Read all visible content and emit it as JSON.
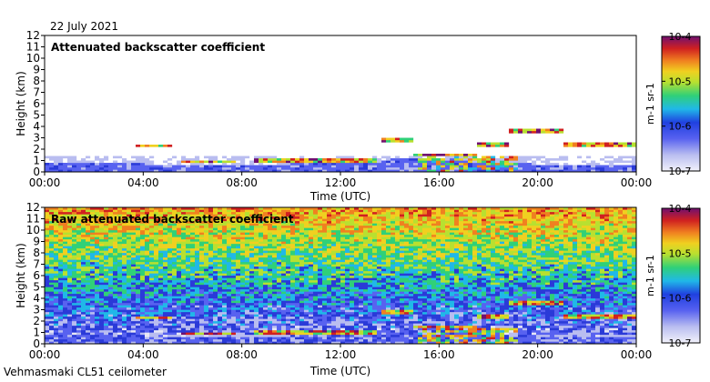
{
  "date": "22 July 2021",
  "footer": "Vehmasmaki CL51 ceilometer",
  "colors": {
    "scale": [
      "#e8e8f6",
      "#b9bdf0",
      "#5862f0",
      "#2a3ad8",
      "#20b8e8",
      "#30d078",
      "#b8e030",
      "#f0d020",
      "#f08020",
      "#d02020",
      "#701070"
    ]
  },
  "chart_data": [
    {
      "type": "heatmap",
      "title": "Attenuated backscatter coefficient",
      "xlabel": "Time (UTC)",
      "ylabel": "Height (km)",
      "x_ticks": [
        "00:00",
        "04:00",
        "08:00",
        "12:00",
        "16:00",
        "20:00",
        "00:00"
      ],
      "y_ticks": [
        "0",
        "1",
        "2",
        "3",
        "4",
        "5",
        "6",
        "7",
        "8",
        "9",
        "10",
        "11",
        "12"
      ],
      "ylim": [
        0,
        12
      ],
      "xlim_hours": [
        0,
        24
      ],
      "colorbar": {
        "label": "m-1 sr-1",
        "ticks": [
          "10-7",
          "10-6",
          "10-5",
          "10-4"
        ],
        "scale": "log",
        "range": [
          1e-07,
          0.0001
        ]
      },
      "features": {
        "boundary_layer_top_km": [
          [
            0,
            0.6
          ],
          [
            4,
            0.5
          ],
          [
            7.5,
            0.4
          ],
          [
            8,
            0.3
          ],
          [
            10,
            0.5
          ],
          [
            12,
            0.7
          ],
          [
            14,
            0.9
          ],
          [
            16,
            1.0
          ],
          [
            18,
            0.8
          ],
          [
            20,
            0.5
          ],
          [
            24,
            0.4
          ]
        ],
        "cloud_layers": [
          {
            "start_h": 3.7,
            "end_h": 5.2,
            "base_km": 2.3
          },
          {
            "start_h": 5.5,
            "end_h": 7.8,
            "base_km": 0.9
          },
          {
            "start_h": 8.5,
            "end_h": 13.5,
            "base_km": 1.0
          },
          {
            "start_h": 13.7,
            "end_h": 15.0,
            "base_km": 2.8
          },
          {
            "start_h": 15.0,
            "end_h": 17.5,
            "base_km": 1.5
          },
          {
            "start_h": 17.5,
            "end_h": 18.8,
            "base_km": 2.4
          },
          {
            "start_h": 18.8,
            "end_h": 21.0,
            "base_km": 3.6
          },
          {
            "start_h": 21.0,
            "end_h": 24.0,
            "base_km": 2.4
          }
        ]
      }
    },
    {
      "type": "heatmap",
      "title": "Raw attenuated backscatter coefficient",
      "xlabel": "Time (UTC)",
      "ylabel": "Height (km)",
      "x_ticks": [
        "00:00",
        "04:00",
        "08:00",
        "12:00",
        "16:00",
        "20:00",
        "00:00"
      ],
      "y_ticks": [
        "0",
        "1",
        "2",
        "3",
        "4",
        "5",
        "6",
        "7",
        "8",
        "9",
        "10",
        "11",
        "12"
      ],
      "ylim": [
        0,
        12
      ],
      "xlim_hours": [
        0,
        24
      ],
      "colorbar": {
        "label": "m-1 sr-1",
        "ticks": [
          "10-7",
          "10-6",
          "10-5",
          "10-4"
        ],
        "scale": "log",
        "range": [
          1e-07,
          0.0001
        ]
      }
    }
  ]
}
